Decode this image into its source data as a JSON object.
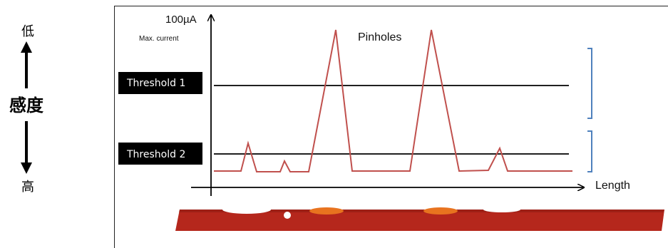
{
  "sensitivity": {
    "low_label": "低",
    "main_label": "感度",
    "high_label": "高"
  },
  "graph": {
    "y_max_label": "100µA",
    "y_max_sublabel": "Max. current",
    "peak_label": "Pinholes",
    "x_axis_label": "Length",
    "threshold_1_label": "Threshold 1",
    "threshold_2_label": "Threshold 2"
  },
  "colors": {
    "signal": "#c0504d",
    "threshold_box": "#000000",
    "bracket": "#4f81bd",
    "strip": "#b5271c",
    "strip_highlight": "#e8731f"
  }
}
